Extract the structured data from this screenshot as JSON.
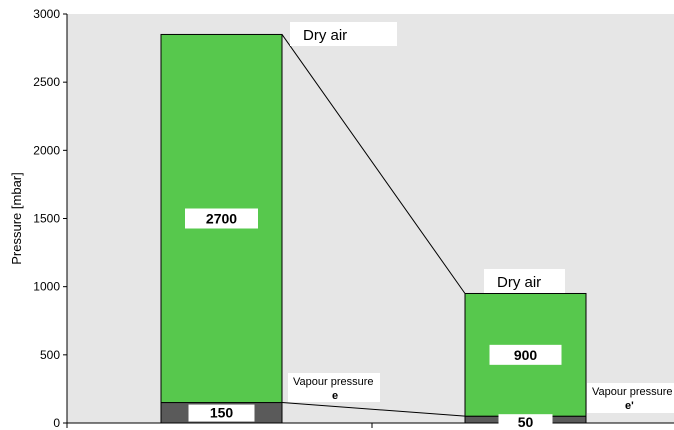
{
  "colors": {
    "plot_bg": "#e6e6e6",
    "dry_air": "#57c84d",
    "vapour": "#5a5a5a",
    "label_box": "#ffffff"
  },
  "chart_data": {
    "type": "bar",
    "stacked": true,
    "categories": [
      "",
      ""
    ],
    "series": [
      {
        "key": "vapour",
        "values": [
          150,
          50
        ]
      },
      {
        "key": "dry_air",
        "values": [
          2700,
          900
        ]
      }
    ],
    "ylabel": "Pressure [mbar]",
    "xlabel": "",
    "ylim": [
      0,
      3000
    ],
    "yticks": [
      0,
      500,
      1000,
      1500,
      2000,
      2500,
      3000
    ],
    "grid": false,
    "legend": "none",
    "segment_labels": {
      "dry_air": [
        "2700",
        "900"
      ],
      "vapour": [
        "150",
        "50"
      ]
    },
    "annotations": {
      "dry_air_top": [
        "Dry air",
        "Dry air"
      ],
      "vapour_title": [
        "Vapour pressure",
        "Vapour pressure"
      ],
      "vapour_symbol": [
        "e",
        "e'"
      ]
    }
  }
}
